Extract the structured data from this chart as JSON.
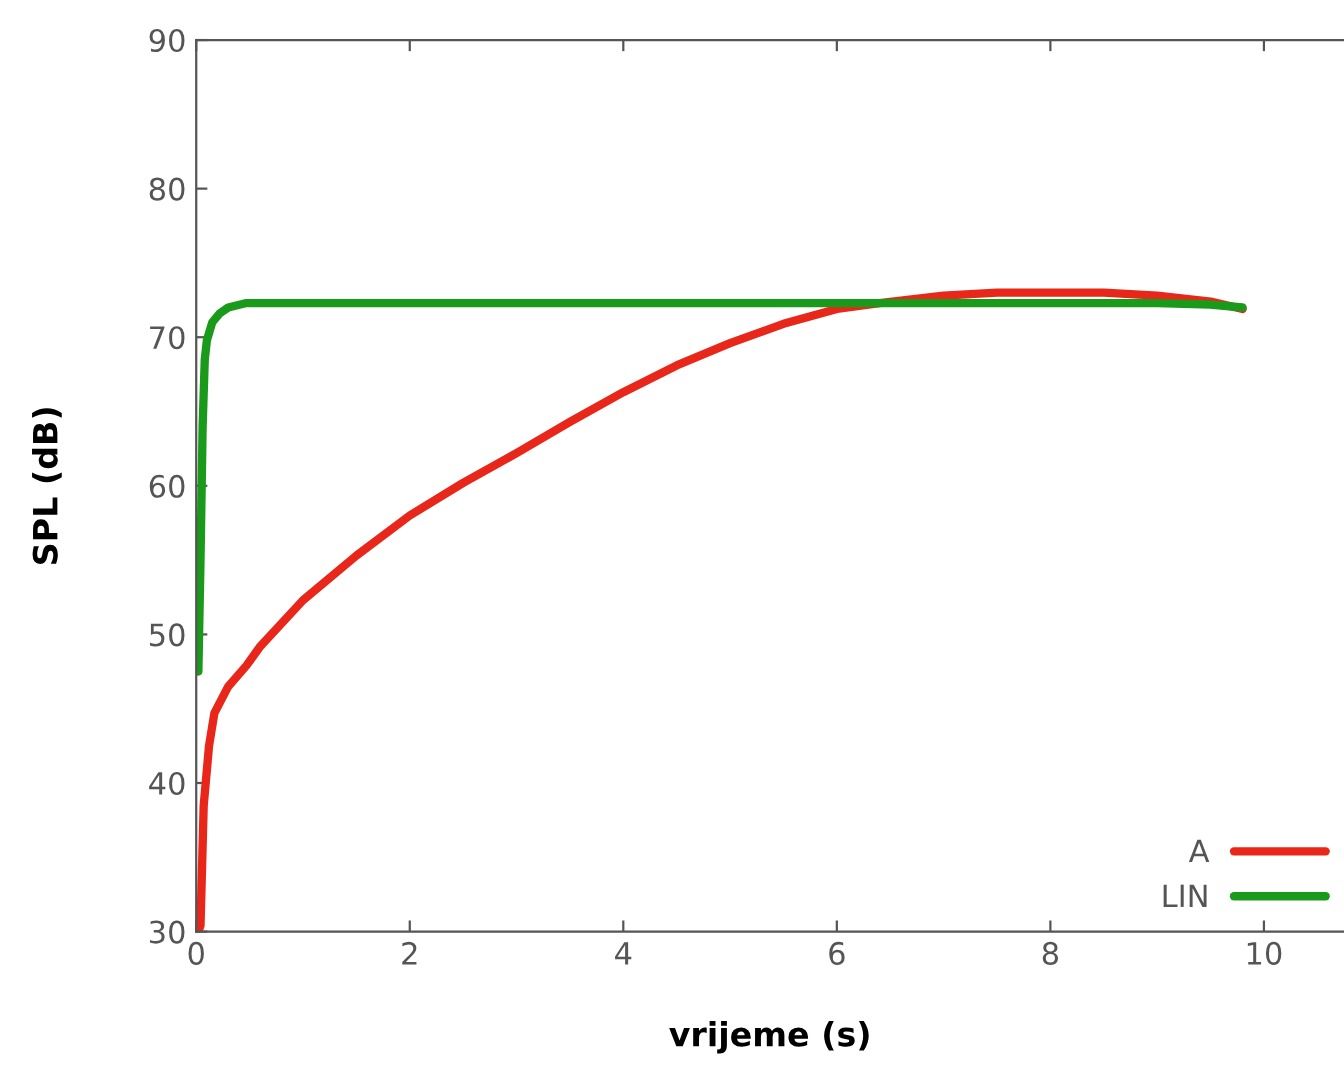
{
  "chart_data": {
    "type": "line",
    "xlabel": "vrijeme (s)",
    "ylabel": "SPL (dB)",
    "xlim": [
      0,
      10.75
    ],
    "ylim": [
      30,
      90
    ],
    "xticks": [
      0,
      2,
      4,
      6,
      8,
      10
    ],
    "yticks": [
      30,
      40,
      50,
      60,
      70,
      80,
      90
    ],
    "grid": false,
    "legend": "bottom right",
    "marker": "none",
    "line_style": "solid",
    "series": [
      {
        "name": "A",
        "color": "#e8261a",
        "x": [
          0.02,
          0.04,
          0.07,
          0.12,
          0.17,
          0.3,
          0.47,
          0.6,
          1,
          1.5,
          2,
          2.5,
          3,
          3.5,
          4,
          4.5,
          5,
          5.5,
          6,
          6.4,
          7,
          7.5,
          8,
          8.5,
          9,
          9.5,
          9.8
        ],
        "values": [
          30,
          30.4,
          38.5,
          42.5,
          44.7,
          46.5,
          47.9,
          49.2,
          52.3,
          55.3,
          58,
          60.2,
          62.2,
          64.3,
          66.3,
          68.1,
          69.6,
          70.9,
          71.9,
          72.3,
          72.8,
          73,
          73,
          73,
          72.8,
          72.4,
          71.9
        ]
      },
      {
        "name": "LIN",
        "color": "#1a9a1a",
        "x": [
          0.02,
          0.04,
          0.06,
          0.08,
          0.1,
          0.15,
          0.22,
          0.3,
          0.47,
          1,
          3,
          5,
          7,
          9,
          9.5,
          9.8
        ],
        "values": [
          47.5,
          55,
          64,
          68.5,
          69.8,
          71,
          71.6,
          72,
          72.3,
          72.3,
          72.3,
          72.3,
          72.3,
          72.3,
          72.2,
          72.0
        ]
      }
    ]
  }
}
